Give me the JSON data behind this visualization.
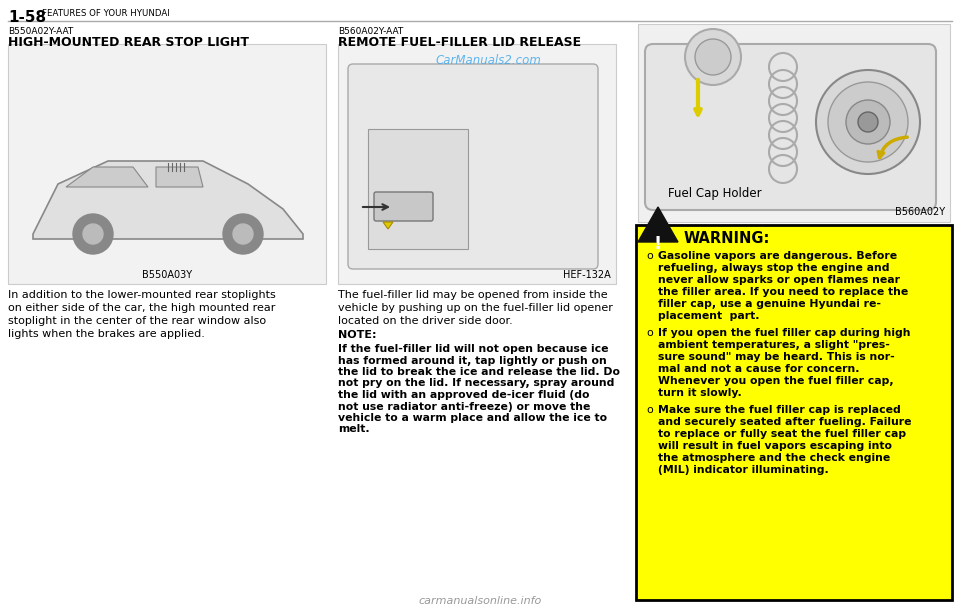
{
  "page_header_num": "1-58",
  "page_header_sub": "FEATURES OF YOUR HYUNDAI",
  "bg_color": "#ffffff",
  "left_section_code": "B550A02Y-AAT",
  "left_section_title": "HIGH-MOUNTED REAR STOP LIGHT",
  "left_body_text": "In addition to the lower-mounted rear stoplights\non either side of the car, the high mounted rear\nstoplight in the center of the rear window also\nlights when the brakes are applied.",
  "left_img_caption": "B550A03Y",
  "mid_section_code": "B560A02Y-AAT",
  "mid_section_title": "REMOTE FUEL-FILLER LID RELEASE",
  "mid_watermark": "CarManuals2.com",
  "mid_img_caption": "HEF-132A",
  "mid_body_text": "The fuel-filler lid may be opened from inside the\nvehicle by pushing up on the fuel-filler lid opener\nlocated on the driver side door.",
  "note_title": "NOTE:",
  "note_text": "If the fuel-filler lid will not open because ice\nhas formed around it, tap lightly or push on\nthe lid to break the ice and release the lid. Do\nnot pry on the lid. If necessary, spray around\nthe lid with an approved de-icer fluid (do\nnot use radiator anti-freeze) or move the\nvehicle to a warm place and allow the ice to\nmelt.",
  "right_img_caption": "B560A02Y",
  "right_img_label": "Fuel Cap Holder",
  "warning_bg": "#ffff00",
  "warning_border": "#000000",
  "warning_title": "WARNING:",
  "warning_bullet1": [
    "Gasoline vapors are dangerous. Before",
    "refueling, always stop the engine and",
    "never allow sparks or open flames near",
    "the filler area. If you need to replace the",
    "filler cap, use a genuine Hyundai re-",
    "placement  part."
  ],
  "warning_bullet2": [
    "If you open the fuel filler cap during high",
    "ambient temperatures, a slight \"pres-",
    "sure sound\" may be heard. This is nor-",
    "mal and not a cause for concern.",
    "Whenever you open the fuel filler cap,",
    "turn it slowly."
  ],
  "warning_bullet3": [
    "Make sure the fuel filler cap is replaced",
    "and securely seated after fueling. Failure",
    "to replace or fully seat the fuel filler cap",
    "will result in fuel vapors escaping into",
    "the atmosphere and the check engine",
    "(MIL) indicator illuminating."
  ],
  "footer_text": "carmanualsonline.info",
  "footer_color": "#999999"
}
